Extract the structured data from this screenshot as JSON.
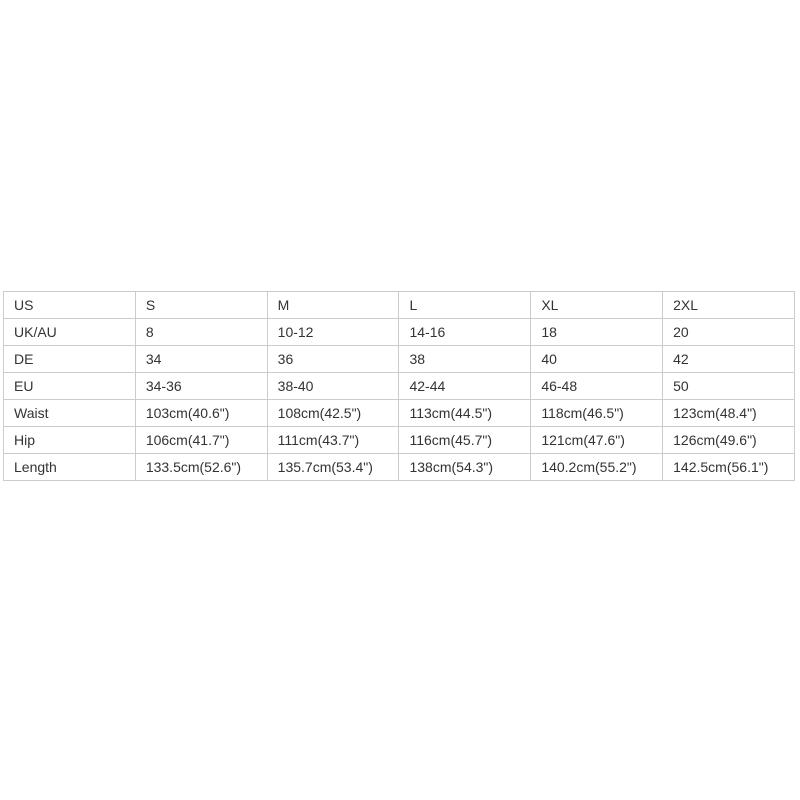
{
  "chart_data": {
    "type": "table",
    "legend": "size-conversion-and-measurement-chart",
    "rows": [
      [
        "US",
        "S",
        "M",
        "L",
        "XL",
        "2XL"
      ],
      [
        "UK/AU",
        "8",
        "10-12",
        "14-16",
        "18",
        "20"
      ],
      [
        "DE",
        "34",
        "36",
        "38",
        "40",
        "42"
      ],
      [
        "EU",
        "34-36",
        "38-40",
        "42-44",
        "46-48",
        "50"
      ],
      [
        "Waist",
        "103cm(40.6\")",
        "108cm(42.5\")",
        "113cm(44.5\")",
        "118cm(46.5\")",
        "123cm(48.4\")"
      ],
      [
        "Hip",
        "106cm(41.7\")",
        "111cm(43.7\")",
        "116cm(45.7\")",
        "121cm(47.6\")",
        "126cm(49.6\")"
      ],
      [
        "Length",
        "133.5cm(52.6\")",
        "135.7cm(53.4\")",
        "138cm(54.3\")",
        "140.2cm(55.2\")",
        "142.5cm(56.1\")"
      ]
    ],
    "row_keys": [
      "us",
      "uk-au",
      "de",
      "eu",
      "waist",
      "hip",
      "length"
    ]
  },
  "colors": {
    "background": "#ffffff",
    "border": "#cccccc",
    "text": "#333333"
  }
}
